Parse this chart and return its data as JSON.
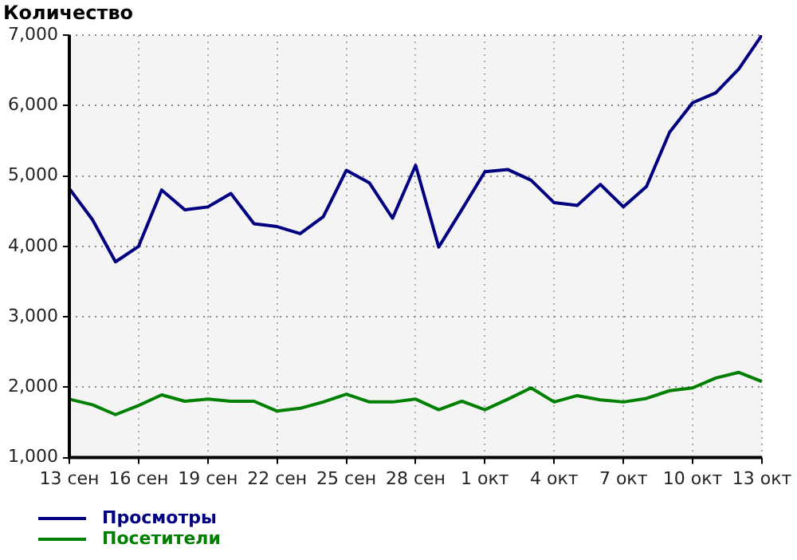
{
  "chart_data": {
    "type": "line",
    "ylabel": "Количество",
    "categories": [
      "13 сен",
      null,
      null,
      "16 сен",
      null,
      null,
      "19 сен",
      null,
      null,
      "22 сен",
      null,
      null,
      "25 сен",
      null,
      null,
      "28 сен",
      null,
      null,
      "1 окт",
      null,
      null,
      "4 окт",
      null,
      null,
      "7 окт",
      null,
      null,
      "10 окт",
      null,
      null,
      "13 окт"
    ],
    "series": [
      {
        "name": "Просмотры",
        "color": "#000080",
        "values": [
          4820,
          4380,
          3780,
          4000,
          4800,
          4520,
          4560,
          4750,
          4320,
          4280,
          4180,
          4420,
          5080,
          4900,
          4400,
          5150,
          3990,
          4520,
          5060,
          5090,
          4940,
          4620,
          4580,
          4880,
          4560,
          4850,
          5620,
          6040,
          6180,
          6520,
          7000
        ]
      },
      {
        "name": "Посетители",
        "color": "#008000",
        "values": [
          1830,
          1750,
          1610,
          1740,
          1890,
          1800,
          1830,
          1800,
          1800,
          1660,
          1700,
          1790,
          1900,
          1790,
          1790,
          1830,
          1680,
          1800,
          1680,
          1830,
          1990,
          1790,
          1880,
          1820,
          1790,
          1840,
          1950,
          1990,
          2130,
          2210,
          2080
        ]
      }
    ],
    "ylim": [
      1000,
      7000
    ],
    "yticks": [
      {
        "value": 1000,
        "label": "1,000"
      },
      {
        "value": 2000,
        "label": "2,000"
      },
      {
        "value": 3000,
        "label": "3,000"
      },
      {
        "value": 4000,
        "label": "4,000"
      },
      {
        "value": 5000,
        "label": "5,000"
      },
      {
        "value": 6000,
        "label": "6,000"
      },
      {
        "value": 7000,
        "label": "7,000"
      }
    ],
    "grid": true,
    "legend": "bottom left",
    "marker": "none",
    "line_style": "solid"
  }
}
